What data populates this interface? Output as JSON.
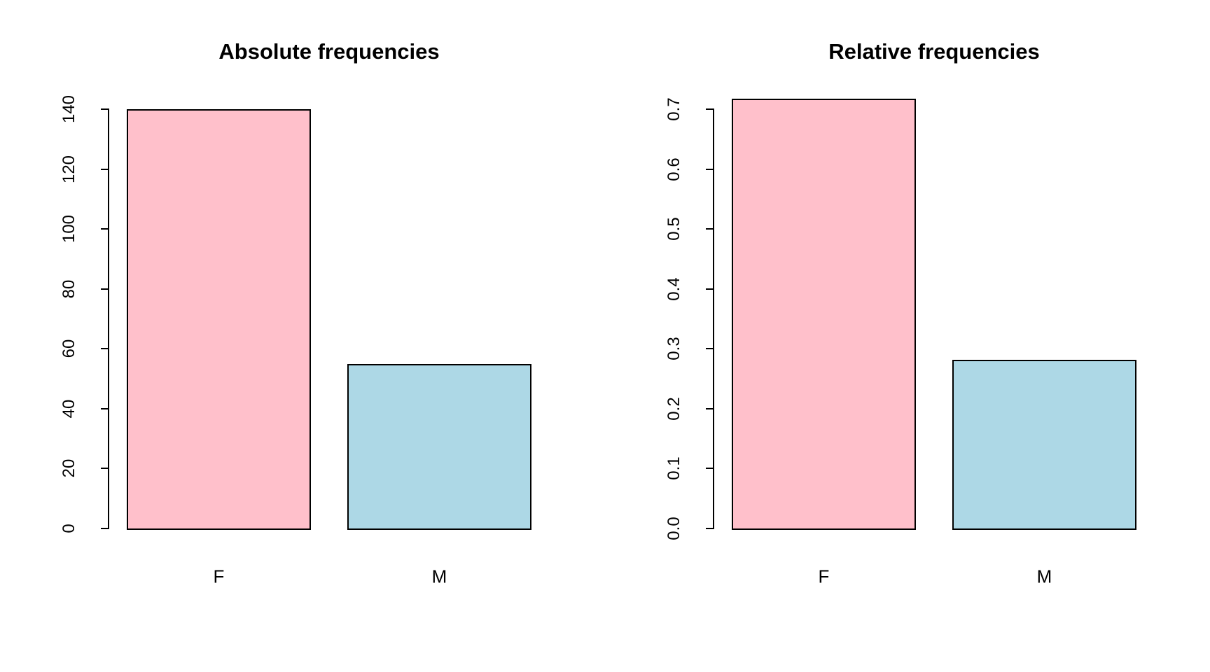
{
  "figure": {
    "background": "#FFFFFF",
    "text_color": "#000000"
  },
  "chart_data": [
    {
      "type": "bar",
      "title": "Absolute frequencies",
      "categories": [
        "F",
        "M"
      ],
      "values": [
        140,
        55
      ],
      "xlabel": "",
      "ylabel": "",
      "ylim": [
        0,
        140
      ],
      "ytick_labels": [
        "0",
        "20",
        "40",
        "60",
        "80",
        "100",
        "120",
        "140"
      ],
      "ytick_label_rotation_deg": 90,
      "grid": false,
      "legend": "none",
      "bar_fill_colors": [
        "#FFC0CB",
        "#ADD8E6"
      ],
      "bar_border_color": "#000000",
      "axis_color": "#000000"
    },
    {
      "type": "bar",
      "title": "Relative frequencies",
      "categories": [
        "F",
        "M"
      ],
      "values": [
        0.718,
        0.282
      ],
      "xlabel": "",
      "ylabel": "",
      "ylim": [
        0,
        0.72
      ],
      "ytick_labels": [
        "0.0",
        "0.1",
        "0.2",
        "0.3",
        "0.4",
        "0.5",
        "0.6",
        "0.7"
      ],
      "ytick_label_rotation_deg": 90,
      "grid": false,
      "legend": "none",
      "bar_fill_colors": [
        "#FFC0CB",
        "#ADD8E6"
      ],
      "bar_border_color": "#000000",
      "axis_color": "#000000"
    }
  ]
}
